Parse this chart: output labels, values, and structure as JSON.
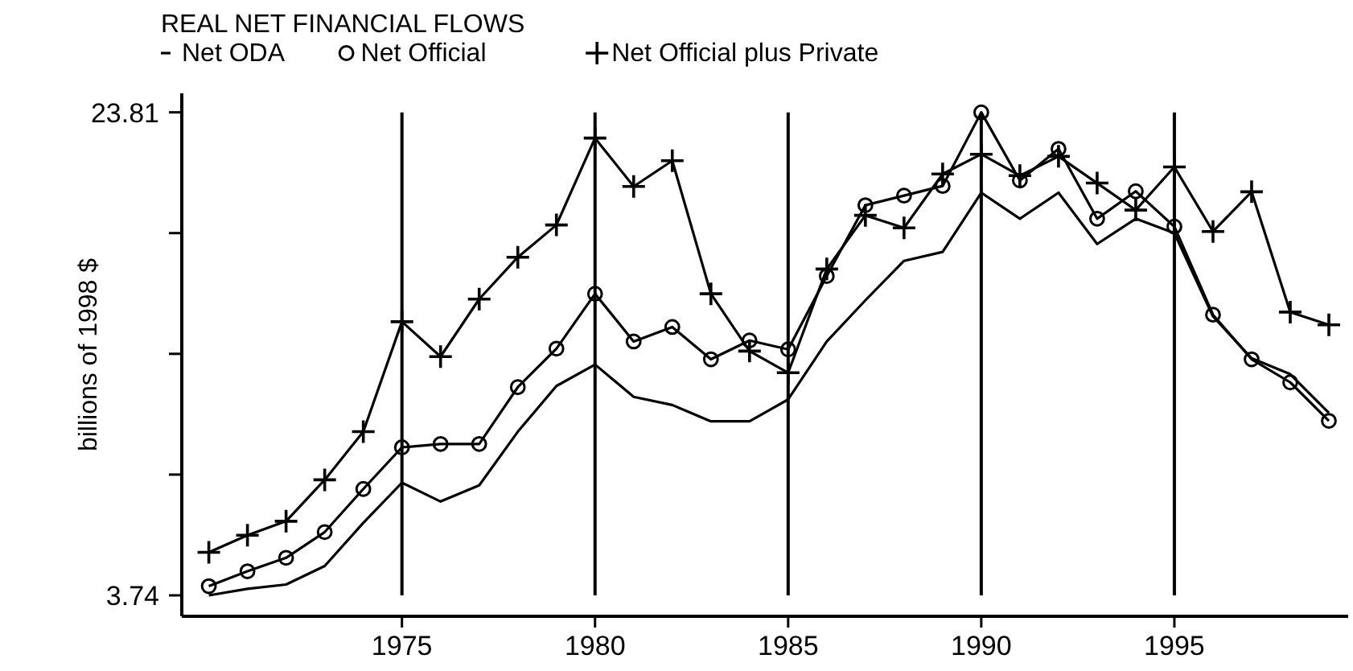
{
  "chart_data": {
    "type": "line",
    "title": "REAL NET FINANCIAL FLOWS",
    "ylabel": "billions of 1998 $",
    "x": [
      1970,
      1971,
      1972,
      1973,
      1974,
      1975,
      1976,
      1977,
      1978,
      1979,
      1980,
      1981,
      1982,
      1983,
      1984,
      1985,
      1986,
      1987,
      1988,
      1989,
      1990,
      1991,
      1992,
      1993,
      1994,
      1995,
      1996,
      1997,
      1998,
      1999
    ],
    "series": [
      {
        "name": "Net ODA",
        "color": "#000000",
        "marker": "none",
        "values": [
          3.74,
          4.01,
          4.19,
          4.96,
          6.75,
          8.42,
          7.64,
          8.31,
          10.54,
          12.44,
          13.33,
          11.99,
          11.65,
          10.97,
          10.97,
          11.88,
          14.29,
          16.0,
          17.64,
          18.01,
          20.47,
          19.39,
          20.47,
          18.34,
          19.39,
          18.79,
          15.33,
          13.59,
          12.93,
          11.32
        ]
      },
      {
        "name": "Net Official",
        "color": "#000000",
        "marker": "circle",
        "values": [
          4.12,
          4.74,
          5.3,
          6.37,
          8.16,
          9.89,
          10.03,
          10.03,
          12.39,
          13.99,
          16.27,
          14.29,
          14.89,
          13.55,
          14.33,
          13.96,
          17.01,
          19.95,
          20.35,
          20.75,
          23.81,
          20.98,
          22.29,
          19.39,
          20.53,
          19.06,
          15.4,
          13.55,
          12.59,
          10.99
        ]
      },
      {
        "name": "Net Official plus Private",
        "color": "#000000",
        "marker": "cross",
        "values": [
          5.53,
          6.24,
          6.82,
          8.54,
          10.54,
          15.11,
          13.66,
          16.05,
          17.79,
          19.13,
          22.74,
          20.73,
          21.8,
          16.27,
          13.89,
          12.99,
          17.3,
          19.53,
          19.01,
          21.25,
          22.07,
          21.18,
          21.98,
          20.87,
          19.75,
          21.54,
          18.86,
          20.51,
          15.51,
          14.98
        ]
      }
    ],
    "xlim": [
      1969.3,
      1999.5
    ],
    "xticks": [
      1975,
      1980,
      1985,
      1990,
      1995
    ],
    "ylim": [
      2.87,
      24.6
    ],
    "yticks": [
      3.74,
      {
        "value": 8.7575,
        "label": null
      },
      {
        "value": 13.775,
        "label": null
      },
      {
        "value": 18.7925,
        "label": null
      },
      23.81
    ],
    "ref_lines": [
      {
        "axis": "x",
        "value": 1975,
        "color": "#000000"
      },
      {
        "axis": "x",
        "value": 1980,
        "color": "#000000"
      },
      {
        "axis": "x",
        "value": 1985,
        "color": "#000000"
      },
      {
        "axis": "x",
        "value": 1990,
        "color": "#000000"
      },
      {
        "axis": "x",
        "value": 1995,
        "color": "#000000"
      }
    ],
    "grid": false,
    "legend": "top left",
    "line_style": "solid"
  }
}
